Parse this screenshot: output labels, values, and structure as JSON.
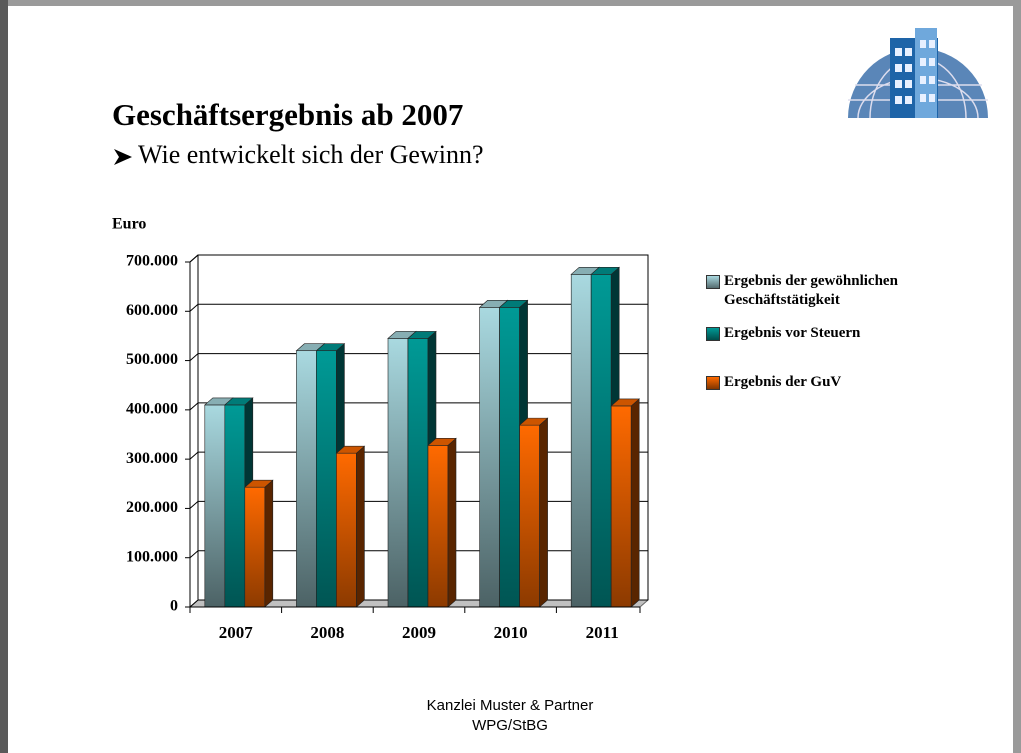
{
  "title": "Geschäftsergebnis ab 2007",
  "subtitle": "Wie entwickelt sich der Gewinn?",
  "footer": [
    "Kanzlei Muster & Partner",
    "WPG/StBG"
  ],
  "chart_data": {
    "type": "bar",
    "ylabel": "Euro",
    "categories": [
      "2007",
      "2008",
      "2009",
      "2010",
      "2011"
    ],
    "series": [
      {
        "name": "Ergebnis der gewöhnlichen Geschäftstätigkeit",
        "color": "#a9d9e0",
        "values": [
          410000,
          520000,
          545000,
          608000,
          675000
        ]
      },
      {
        "name": "Ergebnis vor Steuern",
        "color": "#009a96",
        "values": [
          410000,
          520000,
          545000,
          608000,
          675000
        ]
      },
      {
        "name": "Ergebnis der GuV",
        "color": "#ff6a00",
        "values": [
          243000,
          312000,
          328000,
          369000,
          408000
        ]
      }
    ],
    "ylim": [
      0,
      700000
    ],
    "yticks": [
      0,
      {
        "value": 100000,
        "label": "100.000"
      },
      {
        "value": 200000,
        "label": "200.000"
      },
      {
        "value": 300000,
        "label": "300.000"
      },
      {
        "value": 400000,
        "label": "400.000"
      },
      {
        "value": 500000,
        "label": "500.000"
      },
      {
        "value": 600000,
        "label": "600.000"
      },
      {
        "value": 700000,
        "label": "700.000"
      }
    ],
    "grid": true,
    "legend": "right"
  }
}
